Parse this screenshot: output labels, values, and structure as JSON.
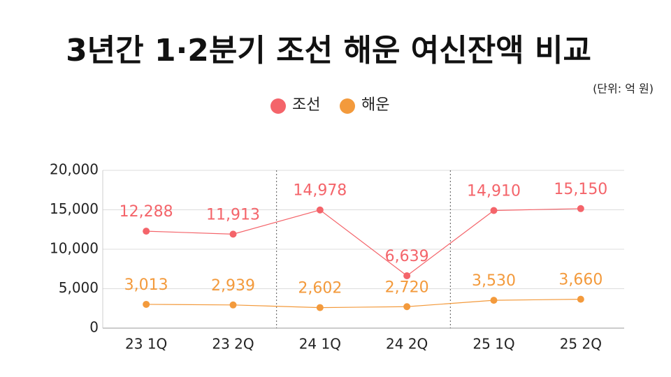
{
  "chart_data": {
    "type": "line",
    "title": "3년간 1·2분기 조선 해운 여신잔액 비교",
    "unit": "(단위: 억 원)",
    "categories": [
      "23 1Q",
      "23 2Q",
      "24 1Q",
      "24 2Q",
      "25 1Q",
      "25 2Q"
    ],
    "series": [
      {
        "name": "조선",
        "color": "#f4646a",
        "values": [
          12288,
          11913,
          14978,
          6639,
          14910,
          15150
        ],
        "value_labels": [
          "12,288",
          "11,913",
          "14,978",
          "6,639",
          "14,910",
          "15,150"
        ]
      },
      {
        "name": "해운",
        "color": "#f39a3c",
        "values": [
          3013,
          2939,
          2602,
          2720,
          3530,
          3660
        ],
        "value_labels": [
          "3,013",
          "2,939",
          "2,602",
          "2,720",
          "3,530",
          "3,660"
        ]
      }
    ],
    "ylim": [
      0,
      20000
    ],
    "yticks": [
      0,
      {
        "value": 5000,
        "label": "5,000"
      },
      {
        "value": 10000,
        "label": "10,000"
      },
      {
        "value": 15000,
        "label": "15,000"
      },
      {
        "value": 20000,
        "label": "20,000"
      }
    ],
    "grid": true,
    "legend": "top"
  }
}
